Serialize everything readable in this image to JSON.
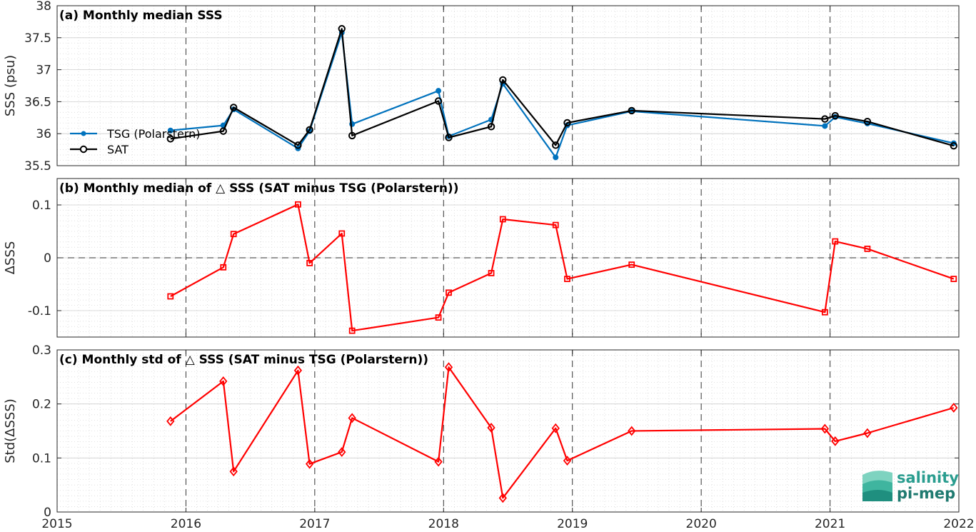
{
  "chart_data": [
    {
      "type": "line",
      "title": "(a) Monthly median SSS",
      "xlabel": "",
      "ylabel": "SSS (psu)",
      "xlim": [
        2015,
        2022
      ],
      "ylim": [
        35.5,
        38
      ],
      "xticks": [
        "2015",
        "2016",
        "2017",
        "2018",
        "2019",
        "2020",
        "2021",
        "2022"
      ],
      "yticks": [
        "35.5",
        "36",
        "36.5",
        "37",
        "37.5",
        "38"
      ],
      "grid": true,
      "legend": "left",
      "series": [
        {
          "name": "TSG (Polarstern)",
          "color": "#0072BD",
          "marker": "dot",
          "x": [
            2015.88,
            2016.29,
            2016.37,
            2016.87,
            2016.96,
            2017.21,
            2017.29,
            2017.96,
            2018.04,
            2018.37,
            2018.46,
            2018.87,
            2018.96,
            2019.46,
            2020.96,
            2021.04,
            2021.29,
            2021.96
          ],
          "y": [
            36.05,
            36.13,
            36.38,
            35.77,
            36.04,
            37.58,
            36.15,
            36.67,
            35.96,
            36.22,
            36.78,
            35.63,
            36.13,
            36.35,
            36.12,
            36.26,
            36.16,
            35.85
          ]
        },
        {
          "name": "SAT",
          "color": "#000000",
          "marker": "circle",
          "x": [
            2015.88,
            2016.29,
            2016.37,
            2016.87,
            2016.96,
            2017.21,
            2017.29,
            2017.96,
            2018.04,
            2018.37,
            2018.46,
            2018.87,
            2018.96,
            2019.46,
            2020.96,
            2021.04,
            2021.29,
            2021.96
          ],
          "y": [
            35.92,
            36.04,
            36.41,
            35.82,
            36.06,
            37.64,
            35.97,
            36.51,
            35.94,
            36.11,
            36.84,
            35.82,
            36.17,
            36.36,
            36.23,
            36.28,
            36.19,
            35.81
          ]
        }
      ]
    },
    {
      "type": "line",
      "title": "(b) Monthly median of △ SSS (SAT minus TSG (Polarstern))",
      "xlabel": "",
      "ylabel": "ΔSSS",
      "xlim": [
        2015,
        2022
      ],
      "ylim": [
        -0.15,
        0.15
      ],
      "xticks": [
        "2015",
        "2016",
        "2017",
        "2018",
        "2019",
        "2020",
        "2021",
        "2022"
      ],
      "yticks": [
        "-0.1",
        "0",
        "0.1"
      ],
      "grid": true,
      "series": [
        {
          "name": "",
          "color": "#FF0000",
          "marker": "square",
          "x": [
            2015.88,
            2016.29,
            2016.37,
            2016.87,
            2016.96,
            2017.21,
            2017.29,
            2017.96,
            2018.04,
            2018.37,
            2018.46,
            2018.87,
            2018.96,
            2019.46,
            2020.96,
            2021.04,
            2021.29,
            2021.96
          ],
          "y": [
            -0.073,
            -0.018,
            0.045,
            0.101,
            -0.01,
            0.046,
            -0.138,
            -0.113,
            -0.066,
            -0.029,
            0.073,
            0.062,
            -0.04,
            -0.013,
            -0.103,
            0.031,
            0.017,
            -0.04
          ]
        }
      ]
    },
    {
      "type": "line",
      "title": "(c) Monthly std of △ SSS (SAT minus TSG (Polarstern))",
      "xlabel": "",
      "ylabel": "Std(ΔSSS)",
      "xlim": [
        2015,
        2022
      ],
      "ylim": [
        0,
        0.3
      ],
      "xticks": [
        "2015",
        "2016",
        "2017",
        "2018",
        "2019",
        "2020",
        "2021",
        "2022"
      ],
      "yticks": [
        "0",
        "0.1",
        "0.2",
        "0.3"
      ],
      "grid": true,
      "series": [
        {
          "name": "",
          "color": "#FF0000",
          "marker": "diamond",
          "x": [
            2015.88,
            2016.29,
            2016.37,
            2016.87,
            2016.96,
            2017.21,
            2017.29,
            2017.96,
            2018.04,
            2018.37,
            2018.46,
            2018.87,
            2018.96,
            2019.46,
            2020.96,
            2021.04,
            2021.29,
            2021.96
          ],
          "y": [
            0.168,
            0.242,
            0.075,
            0.262,
            0.089,
            0.111,
            0.174,
            0.093,
            0.268,
            0.156,
            0.026,
            0.155,
            0.095,
            0.15,
            0.154,
            0.131,
            0.146,
            0.193
          ]
        }
      ]
    }
  ],
  "logo": {
    "line1": "salinity",
    "line2": "pi-mep",
    "color": "#2a9d8f"
  }
}
